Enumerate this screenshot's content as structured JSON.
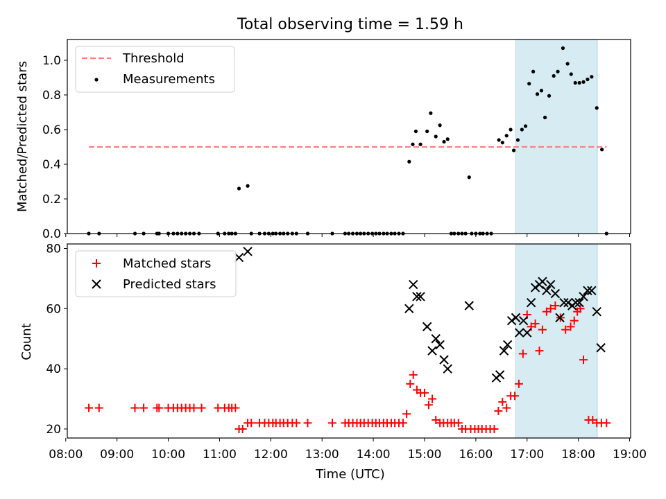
{
  "figure": {
    "title": "Total observing time = 1.59 h"
  },
  "chart_data": [
    {
      "type": "scatter",
      "ylabel": "Matched/Predicted stars",
      "xlabel": "",
      "xlim": [
        8.03,
        19.02
      ],
      "ylim": [
        0,
        1.12
      ],
      "x_tick_values": [
        8,
        9,
        10,
        11,
        12,
        13,
        14,
        15,
        16,
        17,
        18,
        19
      ],
      "y_tick_values": [
        0.0,
        0.2,
        0.4,
        0.6,
        0.8,
        1.0
      ],
      "y_tick_labels": [
        "0.0",
        "0.2",
        "0.4",
        "0.6",
        "0.8",
        "1.0"
      ],
      "legend_position": "top-left",
      "shaded_band": {
        "x_start": 16.78,
        "x_end": 18.37,
        "color": "#add8e6"
      },
      "threshold": {
        "name": "Threshold",
        "y": 0.5,
        "x_start": 8.45,
        "x_end": 18.55,
        "color": "#ff7f7f"
      },
      "series": [
        {
          "name": "Measurements",
          "color": "#000000",
          "marker": "dot",
          "x": [
            8.45,
            8.65,
            9.35,
            9.52,
            9.78,
            9.82,
            10.0,
            10.1,
            10.18,
            10.26,
            10.34,
            10.42,
            10.5,
            10.6,
            10.97,
            11.1,
            11.18,
            11.24,
            11.31,
            11.38,
            11.55,
            11.62,
            11.78,
            11.88,
            11.96,
            12.04,
            12.1,
            12.18,
            12.25,
            12.33,
            12.42,
            12.5,
            12.72,
            13.2,
            13.45,
            13.52,
            13.6,
            13.68,
            13.75,
            13.82,
            13.9,
            13.98,
            14.05,
            14.12,
            14.2,
            14.27,
            14.35,
            14.42,
            14.5,
            14.58,
            14.7,
            14.77,
            14.83,
            14.92,
            15.05,
            15.12,
            15.22,
            15.3,
            15.38,
            15.45,
            15.52,
            15.58,
            15.66,
            15.73,
            15.8,
            15.87,
            15.92,
            16.0,
            16.08,
            16.14,
            16.22,
            16.3,
            16.45,
            16.52,
            16.6,
            16.68,
            16.74,
            16.82,
            16.9,
            16.97,
            17.04,
            17.12,
            17.2,
            17.28,
            17.35,
            17.43,
            17.52,
            17.6,
            17.7,
            17.79,
            17.86,
            17.94,
            18.02,
            18.1,
            18.18,
            18.26,
            18.36,
            18.46,
            18.55
          ],
          "y": [
            0,
            0,
            0,
            0,
            0,
            0,
            0,
            0,
            0,
            0,
            0,
            0,
            0,
            0,
            0,
            0,
            0,
            0,
            0,
            0.26,
            0.275,
            0,
            0,
            0,
            0,
            0,
            0,
            0,
            0,
            0,
            0,
            0,
            0,
            0,
            0,
            0,
            0,
            0,
            0,
            0,
            0,
            0,
            0,
            0,
            0,
            0,
            0,
            0,
            0,
            0,
            0.415,
            0.515,
            0.59,
            0.515,
            0.59,
            0.695,
            0.56,
            0.625,
            0.53,
            0.545,
            0,
            0,
            0,
            0,
            0,
            0.325,
            0,
            0,
            0,
            0,
            0,
            0,
            0.54,
            0.525,
            0.565,
            0.6,
            0.48,
            0.54,
            0.6,
            0.62,
            0.865,
            0.935,
            0.805,
            0.825,
            0.67,
            0.795,
            0.91,
            0.935,
            1.07,
            0.98,
            0.92,
            0.87,
            0.87,
            0.875,
            0.89,
            0.905,
            0.725,
            0.485,
            0
          ]
        }
      ]
    },
    {
      "type": "scatter",
      "ylabel": "Count",
      "xlabel": "Time (UTC)",
      "xlim": [
        8.03,
        19.02
      ],
      "ylim": [
        17,
        81.5
      ],
      "x_tick_values": [
        8,
        9,
        10,
        11,
        12,
        13,
        14,
        15,
        16,
        17,
        18,
        19
      ],
      "x_tick_labels": [
        "08:00",
        "09:00",
        "10:00",
        "11:00",
        "12:00",
        "13:00",
        "14:00",
        "15:00",
        "16:00",
        "17:00",
        "18:00",
        "19:00"
      ],
      "y_tick_values": [
        20,
        40,
        60,
        80
      ],
      "y_tick_labels": [
        "20",
        "40",
        "60",
        "80"
      ],
      "legend_position": "top-left",
      "shaded_band": {
        "x_start": 16.78,
        "x_end": 18.37,
        "color": "#add8e6"
      },
      "series": [
        {
          "name": "Matched stars",
          "color": "#ff0000",
          "marker": "plus",
          "x": [
            8.45,
            8.65,
            9.35,
            9.52,
            9.78,
            9.82,
            10.0,
            10.1,
            10.18,
            10.26,
            10.34,
            10.42,
            10.5,
            10.65,
            10.97,
            11.1,
            11.18,
            11.24,
            11.31,
            11.38,
            11.45,
            11.55,
            11.62,
            11.78,
            11.88,
            11.96,
            12.04,
            12.1,
            12.18,
            12.25,
            12.33,
            12.42,
            12.5,
            12.72,
            13.2,
            13.45,
            13.52,
            13.6,
            13.68,
            13.75,
            13.82,
            13.9,
            13.98,
            14.05,
            14.12,
            14.2,
            14.27,
            14.35,
            14.42,
            14.5,
            14.58,
            14.65,
            14.72,
            14.78,
            14.85,
            14.92,
            15.0,
            15.08,
            15.15,
            15.22,
            15.3,
            15.37,
            15.45,
            15.52,
            15.58,
            15.66,
            15.73,
            15.8,
            15.9,
            15.98,
            16.05,
            16.12,
            16.2,
            16.28,
            16.36,
            16.44,
            16.52,
            16.6,
            16.68,
            16.76,
            16.84,
            16.92,
            17.0,
            17.08,
            17.16,
            17.24,
            17.3,
            17.38,
            17.46,
            17.55,
            17.65,
            17.75,
            17.85,
            17.92,
            17.98,
            18.04,
            18.1,
            18.2,
            18.28,
            18.36,
            18.45,
            18.55
          ],
          "y": [
            27,
            27,
            27,
            27,
            27,
            27,
            27,
            27,
            27,
            27,
            27,
            27,
            27,
            27,
            27,
            27,
            27,
            27,
            27,
            20,
            20,
            22,
            22,
            22,
            22,
            22,
            22,
            22,
            22,
            22,
            22,
            22,
            22,
            22,
            22,
            22,
            22,
            22,
            22,
            22,
            22,
            22,
            22,
            22,
            22,
            22,
            22,
            22,
            22,
            22,
            22,
            25,
            35,
            38,
            33,
            32,
            32,
            28,
            30,
            23,
            22,
            22,
            22,
            22,
            22,
            22,
            20,
            20,
            20,
            20,
            20,
            20,
            20,
            20,
            20,
            26,
            29,
            27,
            31,
            31,
            35,
            45,
            58,
            54,
            55,
            46,
            53,
            59,
            60,
            61,
            57,
            53,
            54,
            56,
            59,
            60,
            43,
            23,
            23,
            22,
            22,
            22
          ],
          "y_note": ""
        },
        {
          "name": "Predicted stars",
          "color": "#000000",
          "marker": "x",
          "x": [
            11.38,
            11.55,
            14.7,
            14.78,
            14.85,
            14.92,
            15.05,
            15.15,
            15.22,
            15.3,
            15.38,
            15.45,
            15.87,
            16.4,
            16.47,
            16.55,
            16.62,
            16.7,
            16.78,
            16.85,
            16.93,
            17.0,
            17.08,
            17.16,
            17.24,
            17.3,
            17.38,
            17.46,
            17.55,
            17.64,
            17.72,
            17.8,
            17.88,
            17.95,
            18.02,
            18.1,
            18.18,
            18.26,
            18.36,
            18.44
          ],
          "y": [
            77,
            79,
            60,
            68,
            64,
            64,
            54,
            46,
            50,
            48,
            43,
            40,
            61,
            37,
            38,
            46,
            48,
            56,
            57,
            52,
            56,
            52,
            62,
            67,
            68,
            69,
            66,
            68,
            65,
            57,
            62,
            62,
            61,
            62,
            62,
            64,
            66,
            66,
            59,
            47
          ]
        }
      ]
    }
  ]
}
